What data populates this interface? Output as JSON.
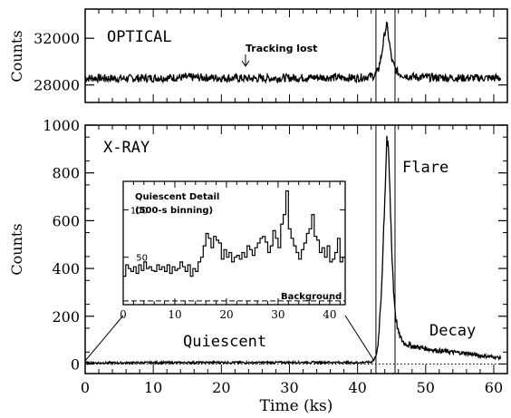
{
  "figure": {
    "xlabel": "Time (ks)",
    "line_color": "#000000",
    "background_color": "#ffffff"
  },
  "chart_data": [
    {
      "type": "line",
      "panel": "optical",
      "label": "OPTICAL",
      "ylabel": "Counts",
      "xlim": [
        0,
        62
      ],
      "ylim": [
        26500,
        34500
      ],
      "yticks": [
        28000,
        32000
      ],
      "ytick_labels": [
        "28000",
        "32000"
      ],
      "annotation": {
        "text": "Tracking lost",
        "x": 23
      },
      "vlines": [
        42.7,
        45.5
      ],
      "baseline_level": 28600,
      "series": [
        {
          "x": [
            0,
            5,
            10,
            15,
            20,
            25,
            30,
            35,
            40,
            42.5,
            43.0,
            43.5,
            44.0,
            44.3,
            44.7,
            45.0,
            45.5,
            46.0,
            47.0,
            48.0,
            50.0,
            55.0,
            61.0
          ],
          "y": [
            28600,
            28550,
            28600,
            28650,
            28600,
            28550,
            28600,
            28650,
            28600,
            28800,
            29200,
            30500,
            32500,
            33200,
            31500,
            30200,
            29400,
            29000,
            28800,
            28700,
            28650,
            28600,
            28600
          ]
        }
      ]
    },
    {
      "type": "line",
      "panel": "xray",
      "label": "X-RAY",
      "ylabel": "Counts",
      "xlim": [
        0,
        62
      ],
      "ylim": [
        -40,
        1000
      ],
      "yticks": [
        0,
        200,
        400,
        600,
        800,
        1000
      ],
      "ytick_labels": [
        "0",
        "200",
        "400",
        "600",
        "800",
        "1000"
      ],
      "xticks": [
        0,
        10,
        20,
        30,
        40,
        50,
        60
      ],
      "xtick_labels": [
        "0",
        "10",
        "20",
        "30",
        "40",
        "50",
        "60"
      ],
      "annotations": [
        {
          "text": "Flare",
          "x": 50
        },
        {
          "text": "Decay",
          "x": 56
        },
        {
          "text": "Quiescent",
          "x": 25
        }
      ],
      "vlines": [
        42.7,
        45.5
      ],
      "series": [
        {
          "x": [
            0,
            5,
            10,
            15,
            20,
            25,
            30,
            35,
            40,
            42.0,
            42.5,
            43.0,
            43.5,
            44.0,
            44.3,
            44.6,
            45.0,
            45.3,
            45.6,
            46.0,
            46.5,
            47.0,
            48.0,
            50.0,
            52.0,
            54.0,
            56.0,
            58.0,
            60.0,
            61.0
          ],
          "y": [
            5,
            5,
            6,
            6,
            7,
            6,
            7,
            7,
            6,
            8,
            20,
            70,
            300,
            700,
            950,
            850,
            500,
            300,
            200,
            130,
            100,
            85,
            75,
            65,
            55,
            50,
            45,
            35,
            30,
            25
          ]
        }
      ]
    },
    {
      "type": "line",
      "panel": "inset",
      "title_lines": [
        "Quiescent Detail",
        "(500-s binning)"
      ],
      "xlim": [
        0,
        43
      ],
      "ylim": [
        0,
        130
      ],
      "yticks": [
        50,
        100
      ],
      "ytick_labels": [
        "50",
        "100"
      ],
      "xticks": [
        0,
        10,
        20,
        30,
        40
      ],
      "xtick_labels": [
        "0",
        "10",
        "20",
        "30",
        "40"
      ],
      "background_label": "Background",
      "background_level": 4,
      "series": [
        {
          "x": [
            0,
            0.5,
            1,
            1.5,
            2,
            2.5,
            3,
            3.5,
            4,
            4.5,
            5,
            5.5,
            6,
            6.5,
            7,
            7.5,
            8,
            8.5,
            9,
            9.5,
            10,
            10.5,
            11,
            11.5,
            12,
            12.5,
            13,
            13.5,
            14,
            14.5,
            15,
            15.5,
            16,
            16.5,
            17,
            17.5,
            18,
            18.5,
            19,
            19.5,
            20,
            20.5,
            21,
            21.5,
            22,
            22.5,
            23,
            23.5,
            24,
            24.5,
            25,
            25.5,
            26,
            26.5,
            27,
            27.5,
            28,
            28.5,
            29,
            29.5,
            30,
            30.5,
            31,
            31.5,
            32,
            32.5,
            33,
            33.5,
            34,
            34.5,
            35,
            35.5,
            36,
            36.5,
            37,
            37.5,
            38,
            38.5,
            39,
            39.5,
            40,
            40.5,
            41,
            41.5,
            42,
            42.5
          ],
          "y": [
            30,
            42,
            38,
            35,
            40,
            33,
            42,
            36,
            45,
            38,
            40,
            36,
            35,
            42,
            37,
            40,
            35,
            42,
            33,
            40,
            36,
            38,
            45,
            40,
            35,
            42,
            30,
            38,
            35,
            45,
            50,
            62,
            75,
            70,
            60,
            72,
            68,
            65,
            48,
            58,
            50,
            55,
            45,
            50,
            52,
            48,
            55,
            50,
            62,
            58,
            52,
            60,
            65,
            70,
            72,
            66,
            55,
            62,
            78,
            70,
            60,
            85,
            95,
            120,
            80,
            70,
            62,
            55,
            48,
            58,
            65,
            75,
            80,
            95,
            72,
            68,
            55,
            60,
            50,
            62,
            45,
            48,
            55,
            70,
            45,
            50
          ]
        }
      ]
    }
  ]
}
